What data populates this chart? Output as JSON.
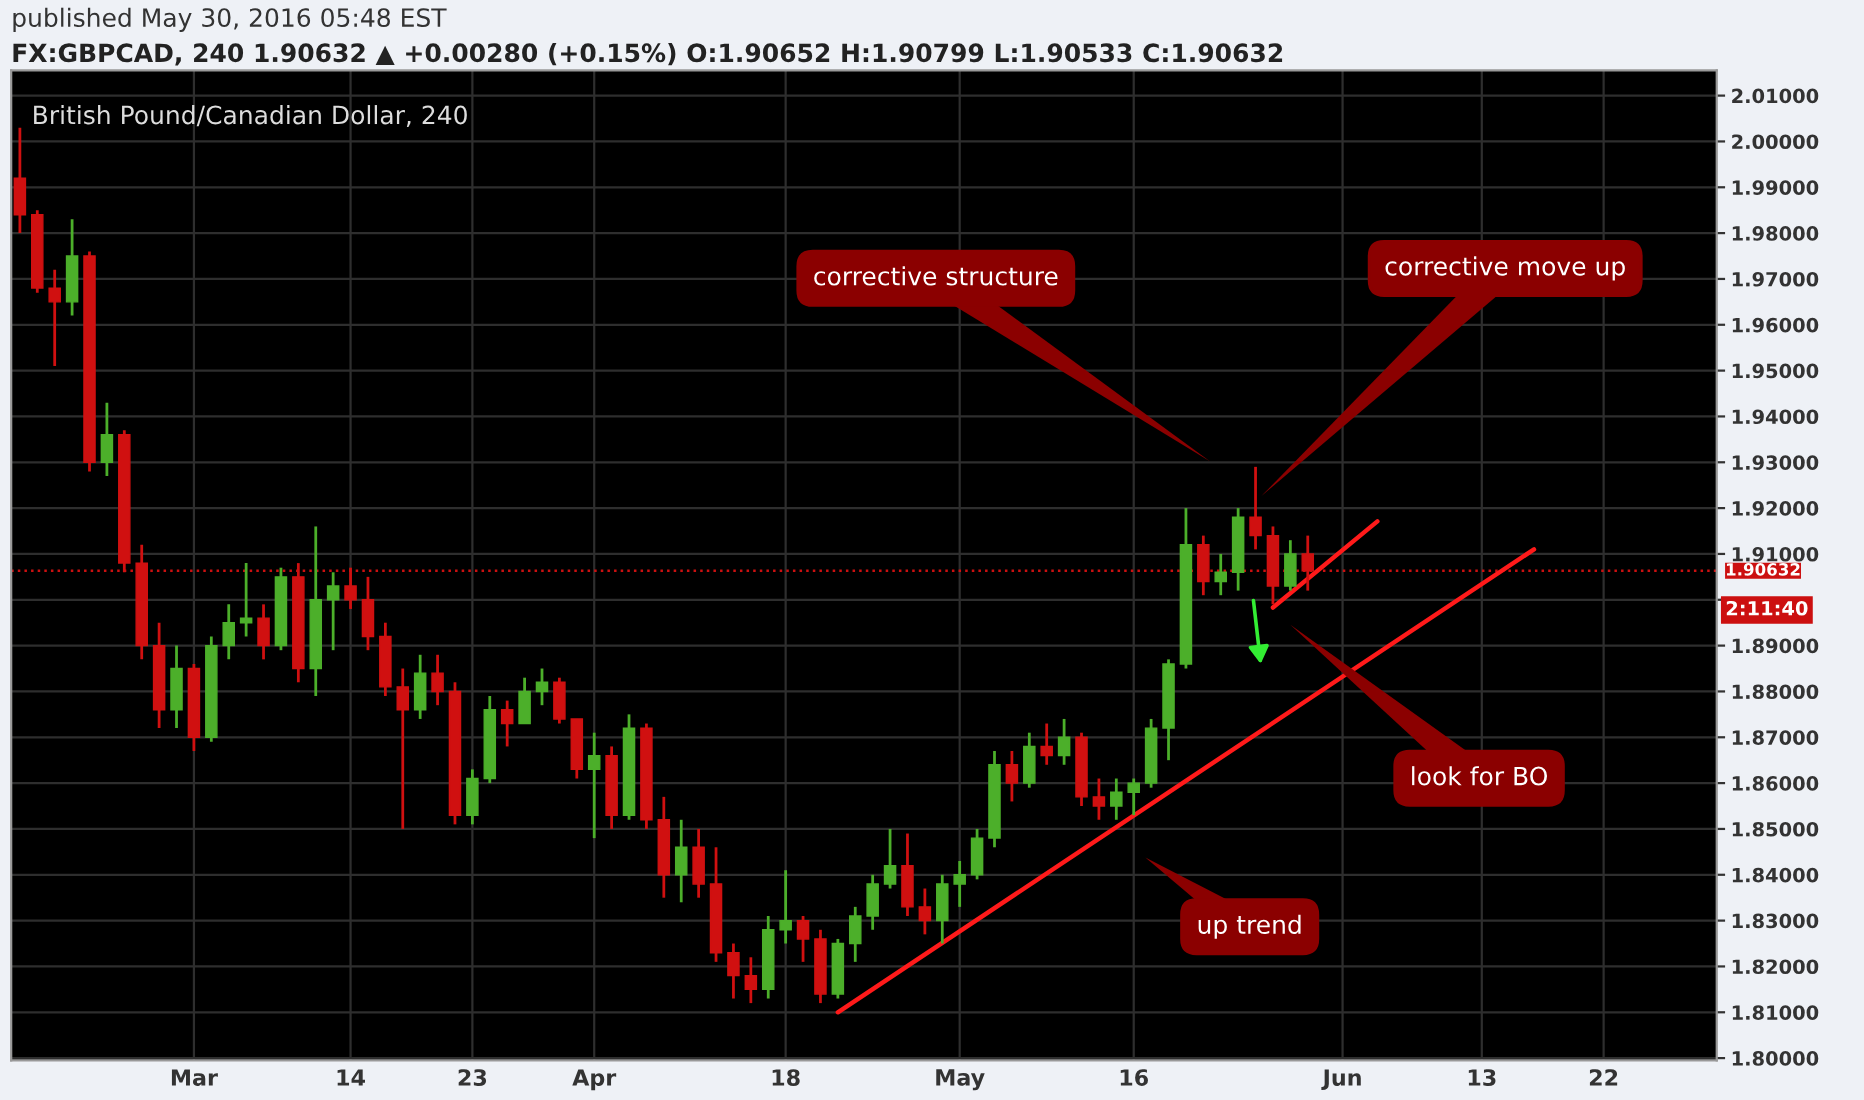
{
  "chart_data": {
    "type": "candlestick",
    "subtitle": "published May 30, 2016 05:48 EST",
    "title": "FX:GBPCAD, 240 1.90632 ▲ +0.00280 (+0.15%) O:1.90652 H:1.90799 L:1.90533 C:1.90632",
    "categories": [
      null,
      null,
      null,
      null,
      null,
      null,
      null,
      null,
      null,
      null,
      "Mar",
      null,
      null,
      null,
      null,
      null,
      null,
      null,
      null,
      "14",
      null,
      null,
      null,
      null,
      null,
      null,
      "23",
      null,
      null,
      null,
      null,
      null,
      null,
      "Apr",
      null,
      null,
      null,
      null,
      null,
      null,
      null,
      null,
      null,
      null,
      "18",
      null,
      null,
      null,
      null,
      null,
      null,
      null,
      null,
      null,
      "May",
      null,
      null,
      null,
      null,
      null,
      null,
      null,
      null,
      null,
      "16",
      null,
      null,
      null,
      null,
      null,
      null,
      null,
      null,
      null,
      null,
      null,
      "Jun",
      null,
      null,
      null,
      null,
      null,
      null,
      null,
      "13",
      null,
      null,
      null,
      null,
      null,
      null,
      "22",
      null,
      null,
      null,
      null,
      null,
      null
    ],
    "ohlc": [
      [
        1.992,
        2.003,
        1.98,
        1.984
      ],
      [
        1.984,
        1.985,
        1.967,
        1.968
      ],
      [
        1.968,
        1.972,
        1.951,
        1.965
      ],
      [
        1.965,
        1.983,
        1.962,
        1.975
      ],
      [
        1.975,
        1.976,
        1.928,
        1.93
      ],
      [
        1.93,
        1.943,
        1.927,
        1.936
      ],
      [
        1.936,
        1.937,
        1.906,
        1.908
      ],
      [
        1.908,
        1.912,
        1.887,
        1.89
      ],
      [
        1.89,
        1.895,
        1.872,
        1.876
      ],
      [
        1.876,
        1.89,
        1.872,
        1.885
      ],
      [
        1.885,
        1.886,
        1.867,
        1.87
      ],
      [
        1.87,
        1.892,
        1.869,
        1.89
      ],
      [
        1.89,
        1.899,
        1.887,
        1.895
      ],
      [
        1.895,
        1.908,
        1.892,
        1.896
      ],
      [
        1.896,
        1.899,
        1.887,
        1.89
      ],
      [
        1.89,
        1.907,
        1.889,
        1.905
      ],
      [
        1.905,
        1.908,
        1.882,
        1.885
      ],
      [
        1.885,
        1.916,
        1.879,
        1.9
      ],
      [
        1.9,
        1.906,
        1.889,
        1.903
      ],
      [
        1.903,
        1.907,
        1.898,
        1.9
      ],
      [
        1.9,
        1.905,
        1.889,
        1.892
      ],
      [
        1.892,
        1.895,
        1.879,
        1.881
      ],
      [
        1.881,
        1.885,
        1.85,
        1.876
      ],
      [
        1.876,
        1.888,
        1.874,
        1.884
      ],
      [
        1.884,
        1.888,
        1.877,
        1.88
      ],
      [
        1.88,
        1.882,
        1.851,
        1.853
      ],
      [
        1.853,
        1.863,
        1.851,
        1.861
      ],
      [
        1.861,
        1.879,
        1.86,
        1.876
      ],
      [
        1.876,
        1.878,
        1.868,
        1.873
      ],
      [
        1.873,
        1.883,
        1.873,
        1.88
      ],
      [
        1.88,
        1.885,
        1.877,
        1.882
      ],
      [
        1.882,
        1.883,
        1.873,
        1.874
      ],
      [
        1.874,
        1.874,
        1.861,
        1.863
      ],
      [
        1.863,
        1.871,
        1.848,
        1.866
      ],
      [
        1.866,
        1.868,
        1.85,
        1.853
      ],
      [
        1.853,
        1.875,
        1.852,
        1.872
      ],
      [
        1.872,
        1.873,
        1.85,
        1.852
      ],
      [
        1.852,
        1.857,
        1.835,
        1.84
      ],
      [
        1.84,
        1.852,
        1.834,
        1.846
      ],
      [
        1.846,
        1.85,
        1.835,
        1.838
      ],
      [
        1.838,
        1.846,
        1.821,
        1.823
      ],
      [
        1.823,
        1.825,
        1.813,
        1.818
      ],
      [
        1.818,
        1.822,
        1.812,
        1.815
      ],
      [
        1.815,
        1.831,
        1.813,
        1.828
      ],
      [
        1.828,
        1.841,
        1.825,
        1.83
      ],
      [
        1.83,
        1.831,
        1.821,
        1.826
      ],
      [
        1.826,
        1.828,
        1.812,
        1.814
      ],
      [
        1.814,
        1.826,
        1.813,
        1.825
      ],
      [
        1.825,
        1.833,
        1.821,
        1.831
      ],
      [
        1.831,
        1.84,
        1.828,
        1.838
      ],
      [
        1.838,
        1.85,
        1.837,
        1.842
      ],
      [
        1.842,
        1.849,
        1.831,
        1.833
      ],
      [
        1.833,
        1.837,
        1.827,
        1.83
      ],
      [
        1.83,
        1.84,
        1.825,
        1.838
      ],
      [
        1.838,
        1.843,
        1.833,
        1.84
      ],
      [
        1.84,
        1.85,
        1.839,
        1.848
      ],
      [
        1.848,
        1.867,
        1.846,
        1.864
      ],
      [
        1.864,
        1.867,
        1.856,
        1.86
      ],
      [
        1.86,
        1.871,
        1.859,
        1.868
      ],
      [
        1.868,
        1.873,
        1.864,
        1.866
      ],
      [
        1.866,
        1.874,
        1.864,
        1.87
      ],
      [
        1.87,
        1.871,
        1.855,
        1.857
      ],
      [
        1.857,
        1.861,
        1.852,
        1.855
      ],
      [
        1.855,
        1.861,
        1.852,
        1.858
      ],
      [
        1.858,
        1.861,
        1.853,
        1.86
      ],
      [
        1.86,
        1.874,
        1.859,
        1.872
      ],
      [
        1.872,
        1.887,
        1.865,
        1.886
      ],
      [
        1.886,
        1.92,
        1.885,
        1.912
      ],
      [
        1.912,
        1.914,
        1.901,
        1.904
      ],
      [
        1.904,
        1.91,
        1.901,
        1.906
      ],
      [
        1.906,
        1.92,
        1.902,
        1.918
      ],
      [
        1.918,
        1.929,
        1.911,
        1.914
      ],
      [
        1.914,
        1.916,
        1.899,
        1.903
      ],
      [
        1.903,
        1.913,
        1.902,
        1.91
      ],
      [
        1.91,
        1.914,
        1.902,
        1.90632
      ],
      null,
      null,
      null,
      null,
      null,
      null,
      null,
      null,
      null,
      null,
      null,
      null,
      null,
      null,
      null,
      null,
      null,
      null,
      null,
      null,
      null,
      null,
      null
    ],
    "series": [
      {
        "type": "line",
        "color": "#ff1a1a",
        "values": [
          null,
          null,
          null,
          null,
          null,
          null,
          null,
          null,
          null,
          null,
          null,
          null,
          null,
          null,
          null,
          null,
          null,
          null,
          null,
          null,
          null,
          null,
          null,
          null,
          null,
          null,
          null,
          null,
          null,
          null,
          null,
          null,
          null,
          null,
          null,
          null,
          null,
          null,
          null,
          null,
          null,
          null,
          null,
          null,
          null,
          null,
          null,
          1.81,
          null,
          null,
          null,
          null,
          null,
          null,
          null,
          null,
          null,
          null,
          null,
          null,
          null,
          null,
          null,
          null,
          null,
          null,
          null,
          null,
          null,
          null,
          null,
          null,
          null,
          null,
          null,
          null,
          null,
          null,
          null,
          null,
          null,
          null,
          null,
          null,
          null,
          null,
          null,
          1.911,
          null,
          null,
          null,
          null,
          null,
          null,
          null,
          null,
          null,
          null
        ]
      },
      {
        "type": "line",
        "color": "#ff1a1a",
        "values": [
          null,
          null,
          null,
          null,
          null,
          null,
          null,
          null,
          null,
          null,
          null,
          null,
          null,
          null,
          null,
          null,
          null,
          null,
          null,
          null,
          null,
          null,
          null,
          null,
          null,
          null,
          null,
          null,
          null,
          null,
          null,
          null,
          null,
          null,
          null,
          null,
          null,
          null,
          null,
          null,
          null,
          null,
          null,
          null,
          null,
          null,
          null,
          null,
          null,
          null,
          null,
          null,
          null,
          null,
          null,
          null,
          null,
          null,
          null,
          null,
          null,
          null,
          null,
          null,
          null,
          null,
          null,
          null,
          null,
          null,
          null,
          null,
          1.8983,
          null,
          null,
          null,
          null,
          null,
          1.9171,
          null,
          null,
          null,
          null,
          null,
          null,
          null,
          null,
          null,
          null,
          null,
          null,
          null,
          null,
          null,
          null,
          null,
          null,
          null
        ]
      }
    ],
    "ylim": [
      1.7995,
      2.0155
    ],
    "yticks": [
      {
        "value": 1.8,
        "label": "1.80000"
      },
      {
        "value": 1.81,
        "label": "1.81000"
      },
      {
        "value": 1.82,
        "label": "1.82000"
      },
      {
        "value": 1.83,
        "label": "1.83000"
      },
      {
        "value": 1.84,
        "label": "1.84000"
      },
      {
        "value": 1.85,
        "label": "1.85000"
      },
      {
        "value": 1.86,
        "label": "1.86000"
      },
      {
        "value": 1.87,
        "label": "1.87000"
      },
      {
        "value": 1.88,
        "label": "1.88000"
      },
      {
        "value": 1.89,
        "label": "1.89000"
      },
      {
        "value": 1.9,
        "label": null
      },
      {
        "value": 1.91,
        "label": "1.91000"
      },
      {
        "value": 1.92,
        "label": "1.92000"
      },
      {
        "value": 1.93,
        "label": "1.93000"
      },
      {
        "value": 1.94,
        "label": "1.94000"
      },
      {
        "value": 1.95,
        "label": "1.95000"
      },
      {
        "value": 1.96,
        "label": "1.96000"
      },
      {
        "value": 1.97,
        "label": "1.97000"
      },
      {
        "value": 1.98,
        "label": "1.98000"
      },
      {
        "value": 1.99,
        "label": "1.99000"
      },
      {
        "value": 2.0,
        "label": "2.00000"
      },
      {
        "value": 2.01,
        "label": "2.01000"
      }
    ],
    "ref_lines": [
      {
        "axis": "y",
        "value": 1.90632,
        "label": "1.90632",
        "color": "#cc1010",
        "line_style": "dotted"
      }
    ],
    "annotations": [
      "British Pound/Canadian Dollar, 240",
      "corrective structure",
      "corrective move up",
      "look for BO",
      "up trend",
      "2:11:40"
    ],
    "grid": true
  }
}
